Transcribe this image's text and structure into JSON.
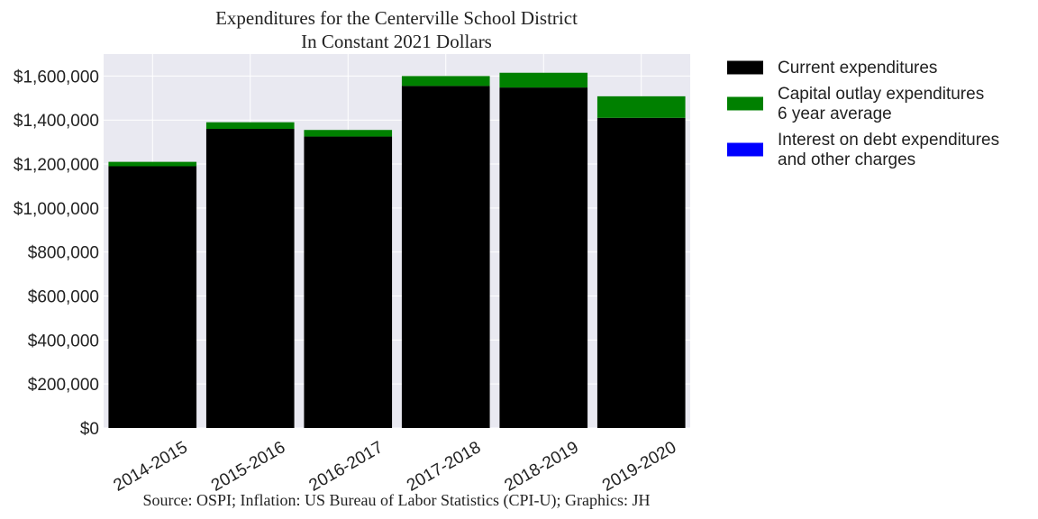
{
  "chart_data": {
    "type": "bar",
    "stacked": true,
    "title_lines": [
      "Expenditures for the Centerville School District",
      "In Constant 2021 Dollars"
    ],
    "categories": [
      "2014-2015",
      "2015-2016",
      "2016-2017",
      "2017-2018",
      "2018-2019",
      "2019-2020"
    ],
    "series": [
      {
        "name": "Current expenditures",
        "color": "#000000",
        "values": [
          1190000,
          1360000,
          1325000,
          1555000,
          1548000,
          1410000
        ]
      },
      {
        "name": "Capital outlay expenditures\n6 year average",
        "color": "#008000",
        "values": [
          20000,
          30000,
          30000,
          45000,
          67000,
          98000
        ]
      },
      {
        "name": "Interest on debt expenditures\nand other charges",
        "color": "#0000ff",
        "values": [
          0,
          0,
          0,
          0,
          0,
          0
        ]
      }
    ],
    "ylim": [
      0,
      1700000
    ],
    "yticks": [
      0,
      200000,
      400000,
      600000,
      800000,
      1000000,
      1200000,
      1400000,
      1600000
    ],
    "ytick_labels": [
      "$0",
      "$200,000",
      "$400,000",
      "$600,000",
      "$800,000",
      "$1,000,000",
      "$1,200,000",
      "$1,400,000",
      "$1,600,000"
    ],
    "grid": true,
    "legend_position": "outside right",
    "source_note": "Source: OSPI; Inflation: US Bureau of Labor Statistics (CPI-U); Graphics: JH"
  }
}
